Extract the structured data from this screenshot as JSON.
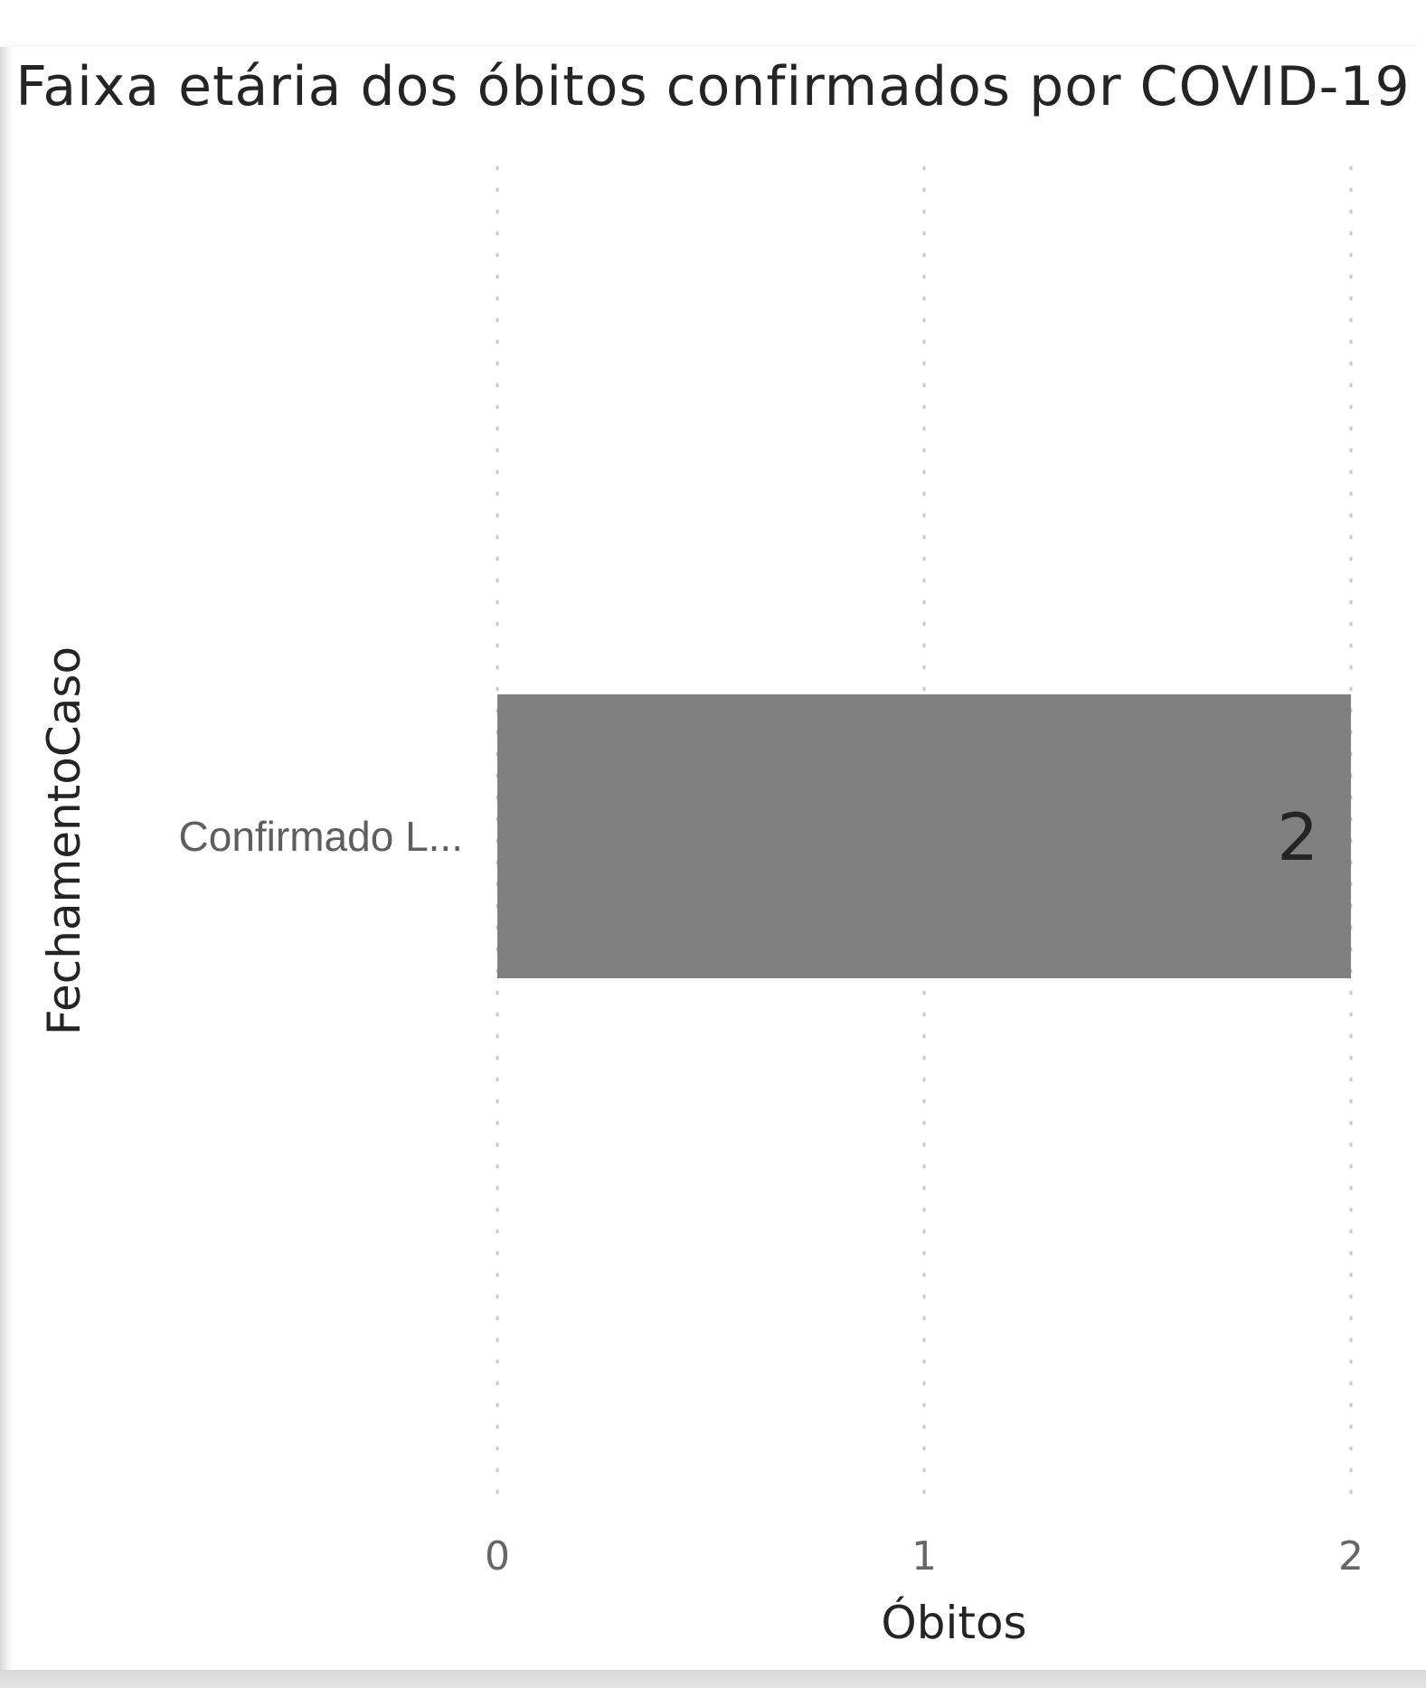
{
  "chart_data": {
    "type": "bar",
    "orientation": "horizontal",
    "title": "Faixa etária dos óbitos confirmados por COVID-19",
    "xlabel": "Óbitos",
    "ylabel": "FechamentoCaso",
    "categories": [
      "Confirmado L..."
    ],
    "values": [
      2
    ],
    "data_labels": [
      "2"
    ],
    "xlim": [
      0,
      2
    ],
    "x_ticks": [
      0,
      1,
      2
    ],
    "x_tick_labels": [
      "0",
      "1",
      "2"
    ],
    "grid": "vertical dotted",
    "bar_color": "#808080",
    "legend": "none"
  }
}
